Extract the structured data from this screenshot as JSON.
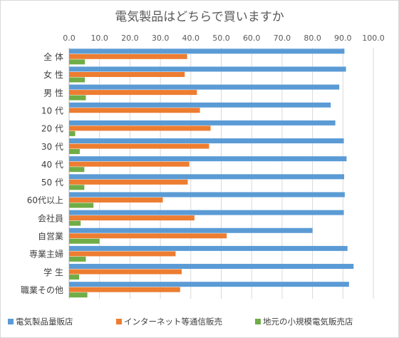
{
  "chart_data": {
    "type": "bar",
    "orientation": "horizontal",
    "title": "電気製品はどちらで買いますか",
    "xlim": [
      0,
      100
    ],
    "x_ticks": [
      "0.0",
      "10.0",
      "20.0",
      "30.0",
      "40.0",
      "50.0",
      "60.0",
      "70.0",
      "80.0",
      "90.0",
      "100.0"
    ],
    "x_axis_position": "top",
    "gridlines": true,
    "legend_position": "bottom",
    "categories": [
      "全 体",
      "女 性",
      "男 性",
      "10 代",
      "20 代",
      "30 代",
      "40 代",
      "50 代",
      "60代以上",
      "会社員",
      "自営業",
      "専業主婦",
      "学 生",
      "職業その他"
    ],
    "series": [
      {
        "name": "電気製品量販店",
        "color": "#5B9BD5",
        "values": [
          90.5,
          91.0,
          88.8,
          86.0,
          87.5,
          90.3,
          91.2,
          90.4,
          90.6,
          90.3,
          80.0,
          91.5,
          93.5,
          92.0
        ]
      },
      {
        "name": "インターネット等通信販売",
        "color": "#ED7D31",
        "values": [
          38.8,
          38.0,
          42.0,
          43.0,
          46.5,
          46.0,
          39.5,
          39.0,
          30.8,
          41.2,
          51.8,
          35.0,
          37.0,
          36.5
        ]
      },
      {
        "name": "地元の小規模電気販売店",
        "color": "#70AD47",
        "values": [
          5.2,
          5.2,
          5.5,
          0.0,
          2.0,
          3.5,
          5.0,
          5.0,
          8.0,
          3.8,
          10.0,
          5.5,
          3.3,
          6.0
        ]
      }
    ]
  }
}
